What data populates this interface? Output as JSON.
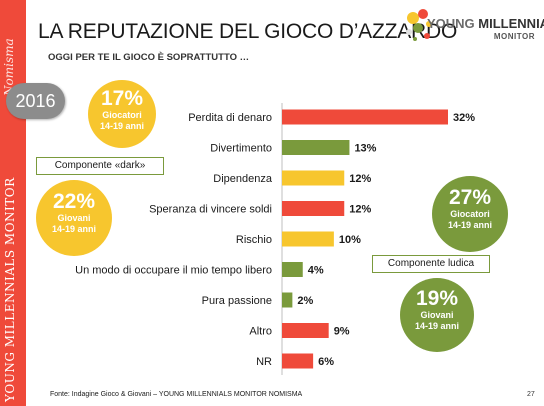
{
  "side": {
    "top_text": "Nomisma",
    "bottom_text": "YOUNG MILLENNIALS MONITOR"
  },
  "header": {
    "title": "LA REPUTAZIONE DEL GIOCO D’AZZARDO",
    "subtitle": "OGGI PER TE IL GIOCO È SOPRATTUTTO …"
  },
  "logo": {
    "line1_a": "YOUNG ",
    "line1_b": "MILLENNIALS",
    "line2": "MONITOR"
  },
  "year_badge": "2016",
  "callouts": {
    "dark_label": "Componente «dark»",
    "ludica_label": "Componente ludica",
    "dark_players": {
      "value": "17%",
      "l1": "Giocatori",
      "l2": "14-19 anni",
      "color": "#f7c62e"
    },
    "dark_youth": {
      "value": "22%",
      "l1": "Giovani",
      "l2": "14-19 anni",
      "color": "#f7c62e"
    },
    "ludica_players": {
      "value": "27%",
      "l1": "Giocatori",
      "l2": "14-19 anni",
      "color": "#7a9a3c"
    },
    "ludica_youth": {
      "value": "19%",
      "l1": "Giovani",
      "l2": "14-19 anni",
      "color": "#7a9a3c"
    }
  },
  "chart_data": {
    "type": "bar",
    "orientation": "horizontal",
    "categories": [
      "Perdita di denaro",
      "Divertimento",
      "Dipendenza",
      "Speranza di vincere soldi",
      "Rischio",
      "Un modo di occupare il mio tempo libero",
      "Pura passione",
      "Altro",
      "NR"
    ],
    "values": [
      32,
      13,
      12,
      12,
      10,
      4,
      2,
      9,
      6
    ],
    "value_labels": [
      "32%",
      "13%",
      "12%",
      "12%",
      "10%",
      "4%",
      "2%",
      "9%",
      "6%"
    ],
    "colors": [
      "#ef4a3a",
      "#7a9a3c",
      "#f7c62e",
      "#ef4a3a",
      "#f7c62e",
      "#7a9a3c",
      "#7a9a3c",
      "#ef4a3a",
      "#ef4a3a"
    ],
    "xlim": [
      0,
      32
    ],
    "grid": false
  },
  "footer": {
    "source": "Fonte: Indagine Gioco & Giovani – YOUNG MILLENNIALS MONITOR NOMISMA",
    "page": "27"
  }
}
